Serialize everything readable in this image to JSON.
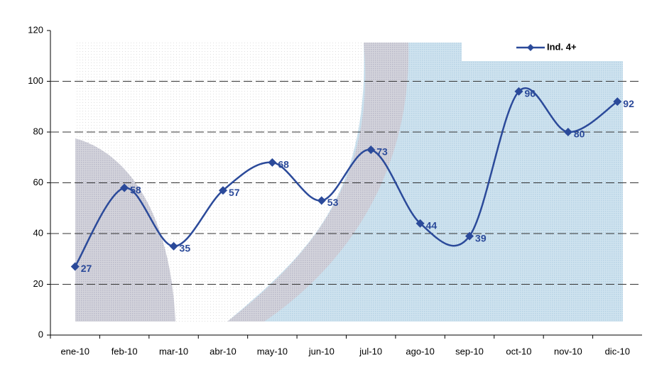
{
  "chart_data": {
    "type": "line",
    "categories": [
      "ene-10",
      "feb-10",
      "mar-10",
      "abr-10",
      "may-10",
      "jun-10",
      "jul-10",
      "ago-10",
      "sep-10",
      "oct-10",
      "nov-10",
      "dic-10"
    ],
    "series": [
      {
        "name": "Ind. 4+",
        "color": "#2b4a9a",
        "values": [
          27,
          58,
          35,
          57,
          68,
          53,
          73,
          44,
          39,
          96,
          80,
          92
        ]
      }
    ],
    "ylim": [
      0,
      120
    ],
    "yticks": [
      0,
      20,
      40,
      60,
      80,
      100,
      120
    ],
    "grid": true,
    "legend": "top-right",
    "smooth": true
  }
}
